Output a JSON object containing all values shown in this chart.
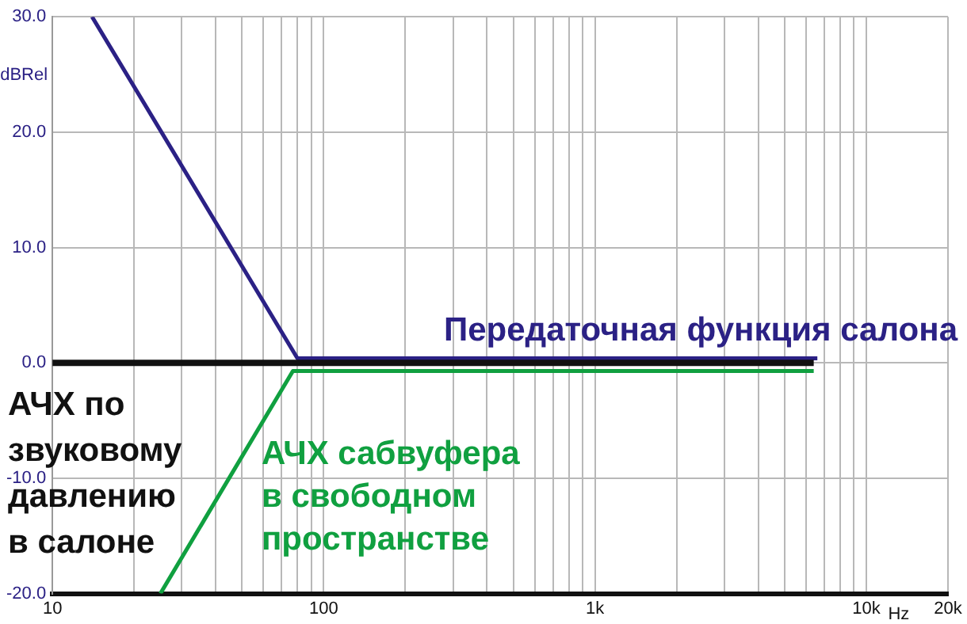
{
  "chart_data": {
    "type": "line",
    "ylabel": "dBRel",
    "xlabel": "Hz",
    "log": "x",
    "grid": true,
    "legend": false,
    "marker": "none",
    "line_style": "solid",
    "xlim": [
      10,
      20000
    ],
    "ylim": [
      -20,
      30
    ],
    "xticks": [
      10,
      {
        "value": 20,
        "label": null
      },
      {
        "value": 30,
        "label": null
      },
      {
        "value": 40,
        "label": null
      },
      {
        "value": 50,
        "label": null
      },
      {
        "value": 60,
        "label": null
      },
      {
        "value": 70,
        "label": null
      },
      {
        "value": 80,
        "label": null
      },
      {
        "value": 90,
        "label": null
      },
      100,
      {
        "value": 200,
        "label": null
      },
      {
        "value": 300,
        "label": null
      },
      {
        "value": 400,
        "label": null
      },
      {
        "value": 500,
        "label": null
      },
      {
        "value": 600,
        "label": null
      },
      {
        "value": 700,
        "label": null
      },
      {
        "value": 800,
        "label": null
      },
      {
        "value": 900,
        "label": null
      },
      {
        "value": 1000,
        "label": "1k"
      },
      {
        "value": 2000,
        "label": null
      },
      {
        "value": 3000,
        "label": null
      },
      {
        "value": 4000,
        "label": null
      },
      {
        "value": 5000,
        "label": null
      },
      {
        "value": 6000,
        "label": null
      },
      {
        "value": 7000,
        "label": null
      },
      {
        "value": 8000,
        "label": null
      },
      {
        "value": 9000,
        "label": null
      },
      {
        "value": 10000,
        "label": "10k"
      },
      {
        "value": 20000,
        "label": "20k"
      }
    ],
    "yticks": [
      {
        "value": -20,
        "label": "-20.0"
      },
      {
        "value": -10,
        "label": "-10.0"
      },
      {
        "value": 0,
        "label": "0.0"
      },
      {
        "value": 10,
        "label": "10.0"
      },
      {
        "value": 20,
        "label": "20.0"
      },
      {
        "value": 30,
        "label": "30.0"
      }
    ],
    "series": [
      {
        "name": "АЧХ по звуковому давлению в салоне",
        "color": "#111111",
        "x": [
          10,
          6400
        ],
        "values": [
          0,
          0
        ]
      },
      {
        "name": "Передаточная функция салона",
        "color": "#2b2185",
        "x": [
          14,
          80,
          6600
        ],
        "values": [
          30,
          0.4,
          0.4
        ]
      },
      {
        "name": "АЧХ сабвуфера в свободном пространстве",
        "color": "#10a040",
        "x": [
          25,
          77,
          6400
        ],
        "values": [
          -20,
          -0.7,
          -0.7
        ]
      }
    ]
  }
}
